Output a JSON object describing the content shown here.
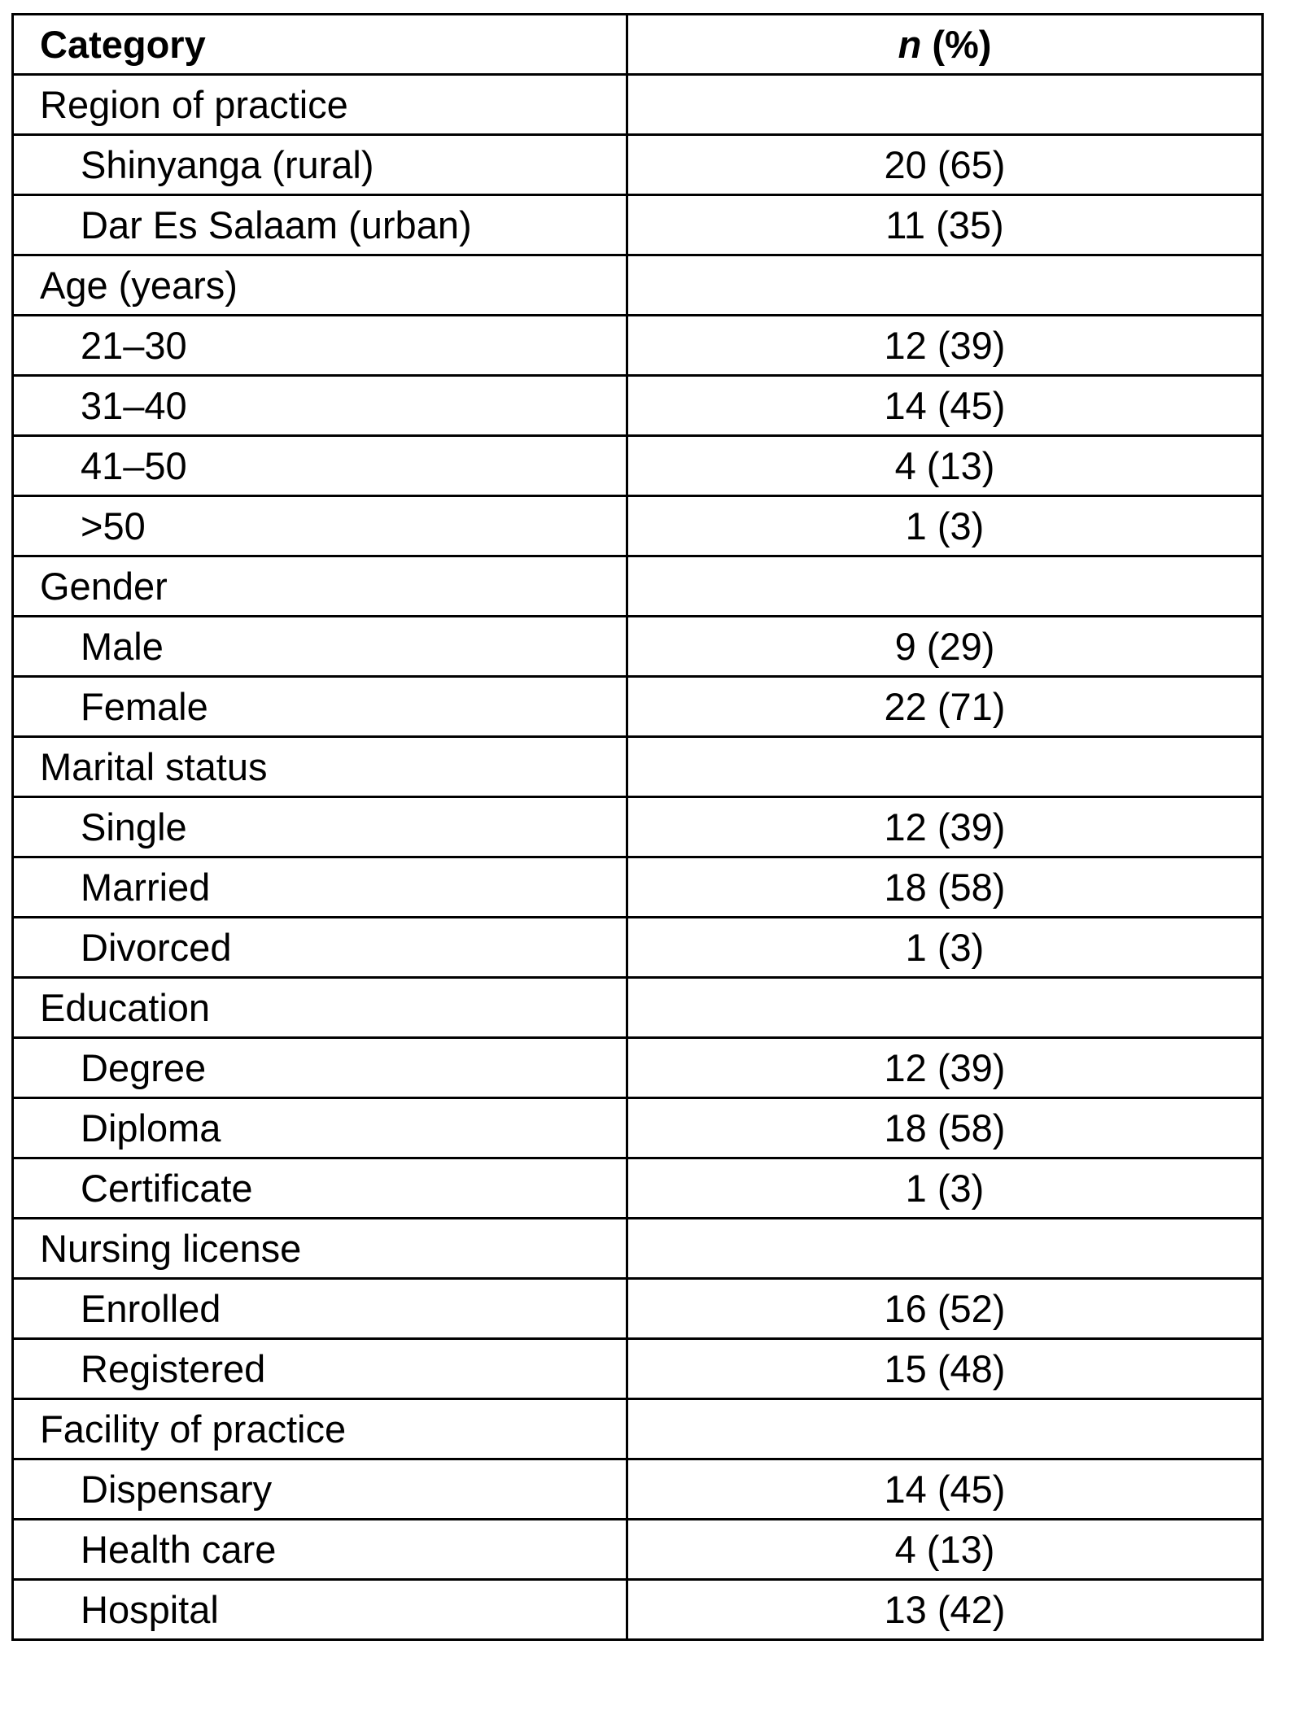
{
  "table": {
    "header": {
      "category": "Category",
      "n_label": "n",
      "pct_label": " (%)"
    },
    "rows": [
      {
        "kind": "category",
        "label": "Region of practice",
        "value": ""
      },
      {
        "kind": "item",
        "label": "Shinyanga (rural)",
        "value": "20 (65)"
      },
      {
        "kind": "item",
        "label": "Dar Es Salaam (urban)",
        "value": "11 (35)"
      },
      {
        "kind": "category",
        "label": "Age (years)",
        "value": ""
      },
      {
        "kind": "item",
        "label": "21–30",
        "value": "12 (39)"
      },
      {
        "kind": "item",
        "label": "31–40",
        "value": "14 (45)"
      },
      {
        "kind": "item",
        "label": "41–50",
        "value": "4 (13)"
      },
      {
        "kind": "item",
        "label": ">50",
        "value": "1 (3)"
      },
      {
        "kind": "category",
        "label": "Gender",
        "value": ""
      },
      {
        "kind": "item",
        "label": "Male",
        "value": "9 (29)"
      },
      {
        "kind": "item",
        "label": "Female",
        "value": "22 (71)"
      },
      {
        "kind": "category",
        "label": "Marital status",
        "value": ""
      },
      {
        "kind": "item",
        "label": "Single",
        "value": "12 (39)"
      },
      {
        "kind": "item",
        "label": "Married",
        "value": "18 (58)"
      },
      {
        "kind": "item",
        "label": "Divorced",
        "value": "1 (3)"
      },
      {
        "kind": "category",
        "label": "Education",
        "value": ""
      },
      {
        "kind": "item",
        "label": "Degree",
        "value": "12 (39)"
      },
      {
        "kind": "item",
        "label": "Diploma",
        "value": "18 (58)"
      },
      {
        "kind": "item",
        "label": "Certificate",
        "value": "1 (3)"
      },
      {
        "kind": "category",
        "label": "Nursing license",
        "value": ""
      },
      {
        "kind": "item",
        "label": "Enrolled",
        "value": "16 (52)"
      },
      {
        "kind": "item",
        "label": "Registered",
        "value": "15 (48)"
      },
      {
        "kind": "category",
        "label": "Facility of practice",
        "value": ""
      },
      {
        "kind": "item",
        "label": "Dispensary",
        "value": "14 (45)"
      },
      {
        "kind": "item",
        "label": "Health care",
        "value": "4 (13)"
      },
      {
        "kind": "item",
        "label": "Hospital",
        "value": "13 (42)"
      }
    ]
  }
}
